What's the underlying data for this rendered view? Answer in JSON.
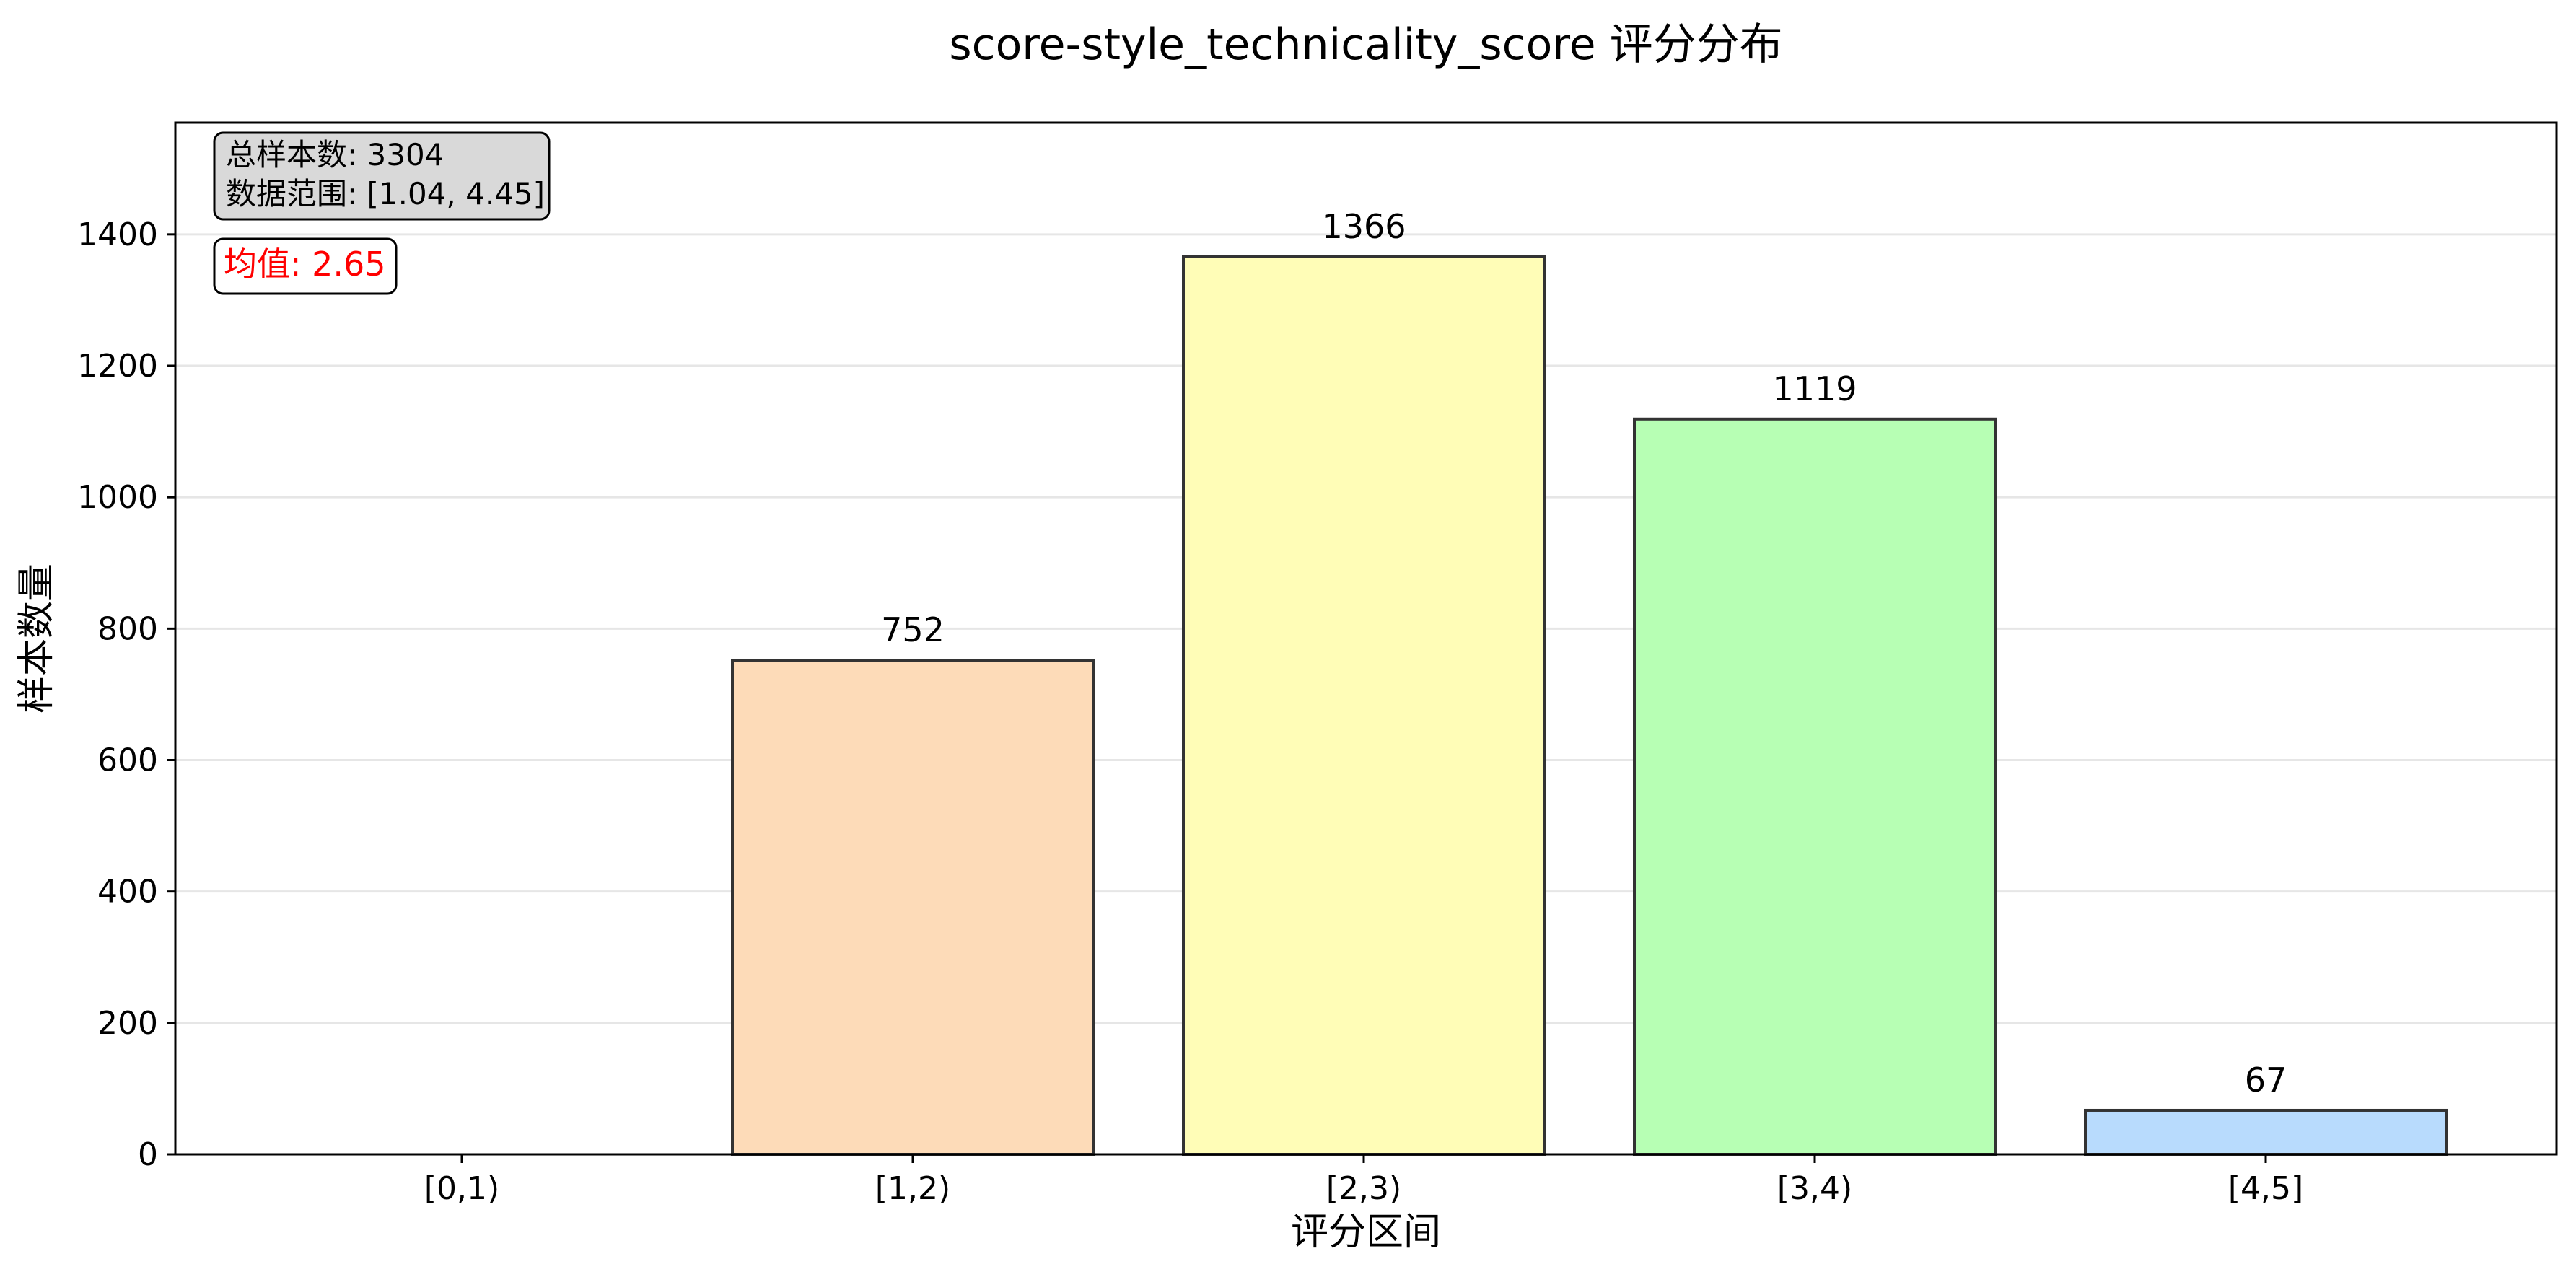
{
  "chart_data": {
    "type": "bar",
    "title": "score-style_technicality_score 评分分布",
    "xlabel": "评分区间",
    "ylabel": "样本数量",
    "categories": [
      "[0,1)",
      "[1,2)",
      "[2,3)",
      "[3,4)",
      "[4,5]"
    ],
    "values": [
      0,
      752,
      1366,
      1119,
      67
    ],
    "value_labels": [
      "",
      "752",
      "1366",
      "1119",
      "67"
    ],
    "bar_colors": [
      "#dddddd",
      "#fddbb8",
      "#fffdb7",
      "#b7ffb4",
      "#b8dbfd"
    ],
    "bar_edge_color": "#333333",
    "ylim": [
      0,
      1570
    ],
    "yticks": [
      0,
      200,
      400,
      600,
      800,
      1000,
      1200,
      1400
    ],
    "ytick_labels": [
      "0",
      "200",
      "400",
      "600",
      "800",
      "1000",
      "1200",
      "1400"
    ],
    "grid": "y-axis horizontal lines",
    "info_box": {
      "line1": "总样本数: 3304",
      "line2": "数据范围: [1.04, 4.45]"
    },
    "mean_label": "均值: 2.65",
    "colors": {
      "info_box_fill": "#d9d9d9",
      "mean_text": "#ff0000"
    }
  }
}
